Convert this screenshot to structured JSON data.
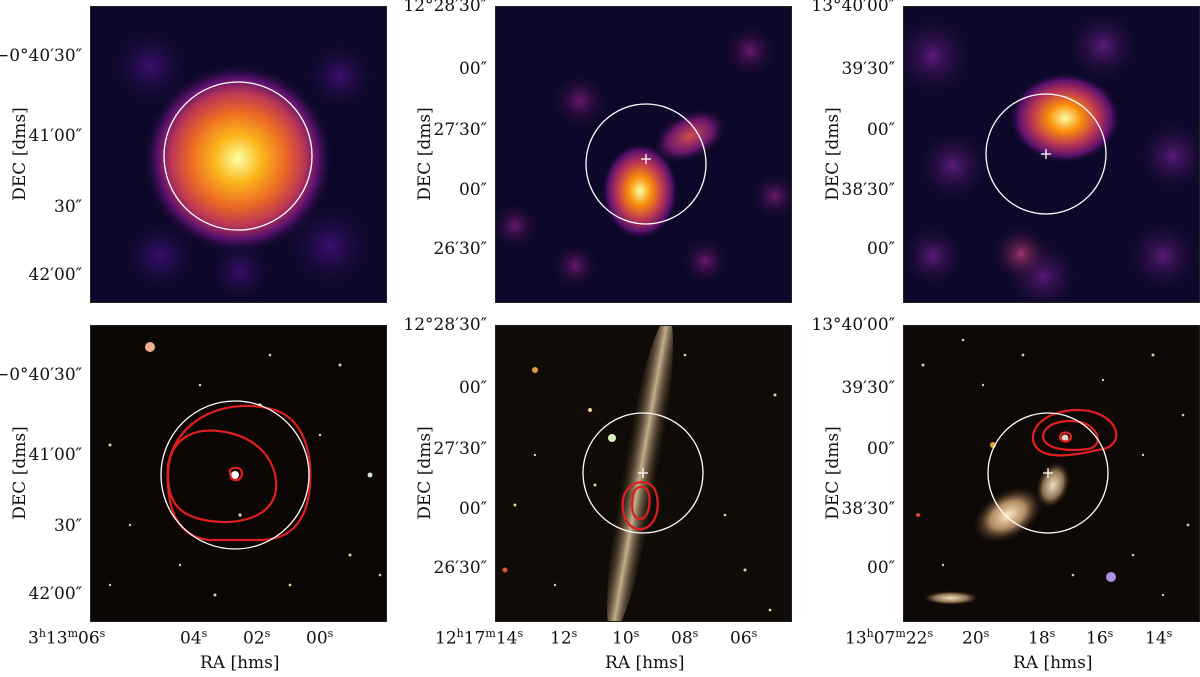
{
  "axis_labels": {
    "dec": "DEC [dms]",
    "ra": "RA [hms]"
  },
  "colors": {
    "circle": "#ffffff",
    "contour": "#e21f1f",
    "marker": "#ffffff"
  },
  "columns": [
    {
      "dec_ticks": [
        "−0°40′30″",
        "41′00″",
        "30″",
        "42′00″"
      ],
      "ra_ticks": [
        {
          "h": "3",
          "m": "13",
          "s": "06"
        },
        {
          "s": "04"
        },
        {
          "s": "02"
        },
        {
          "s": "00"
        }
      ],
      "top_panel": {
        "name": "radio-map-1",
        "colormap": "inferno"
      },
      "bottom_panel": {
        "name": "optical-image-1",
        "contours": 3
      }
    },
    {
      "dec_ticks": [
        "12°28′30″",
        "00″",
        "27′30″",
        "00″",
        "26′30″"
      ],
      "ra_ticks": [
        {
          "h": "12",
          "m": "17",
          "s": "14"
        },
        {
          "s": "12"
        },
        {
          "s": "10"
        },
        {
          "s": "08"
        },
        {
          "s": "06"
        }
      ],
      "top_panel": {
        "name": "radio-map-2",
        "colormap": "inferno"
      },
      "bottom_panel": {
        "name": "optical-image-2",
        "contours": 2
      }
    },
    {
      "dec_ticks": [
        "13°40′00″",
        "39′30″",
        "00″",
        "38′30″",
        "00″"
      ],
      "ra_ticks": [
        {
          "h": "13",
          "m": "07",
          "s": "22"
        },
        {
          "s": "20"
        },
        {
          "s": "18"
        },
        {
          "s": "16"
        },
        {
          "s": "14"
        }
      ],
      "top_panel": {
        "name": "radio-map-3",
        "colormap": "inferno"
      },
      "bottom_panel": {
        "name": "optical-image-3",
        "contours": 3
      }
    }
  ]
}
